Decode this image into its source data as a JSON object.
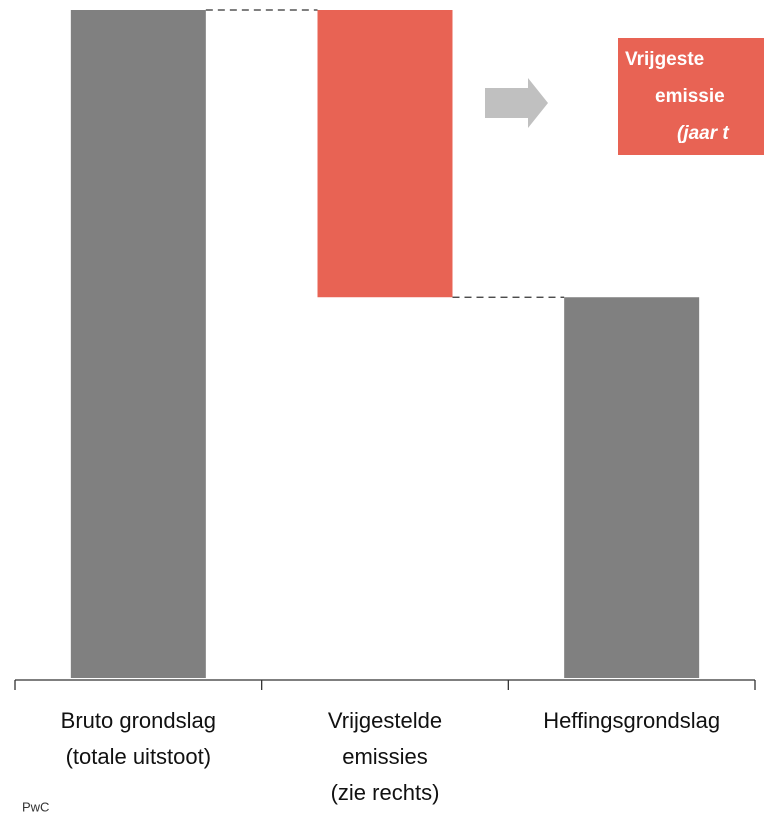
{
  "chart_data": {
    "type": "waterfall",
    "categories": [
      "Bruto grondslag\n(totale uitstoot)",
      "Vrijgestelde\nemissies\n(zie rechts)",
      "Heffingsgrondslag"
    ],
    "values": [
      100,
      -43,
      57
    ],
    "measure": [
      "absolute",
      "relative",
      "total"
    ],
    "colors": [
      "#808080",
      "#e86354",
      "#808080"
    ],
    "ylim": [
      0,
      100
    ],
    "callout": [
      "Vrijgeste",
      "emissie",
      "(jaar t"
    ],
    "callout_color": "#e86354",
    "source": "PwC"
  }
}
